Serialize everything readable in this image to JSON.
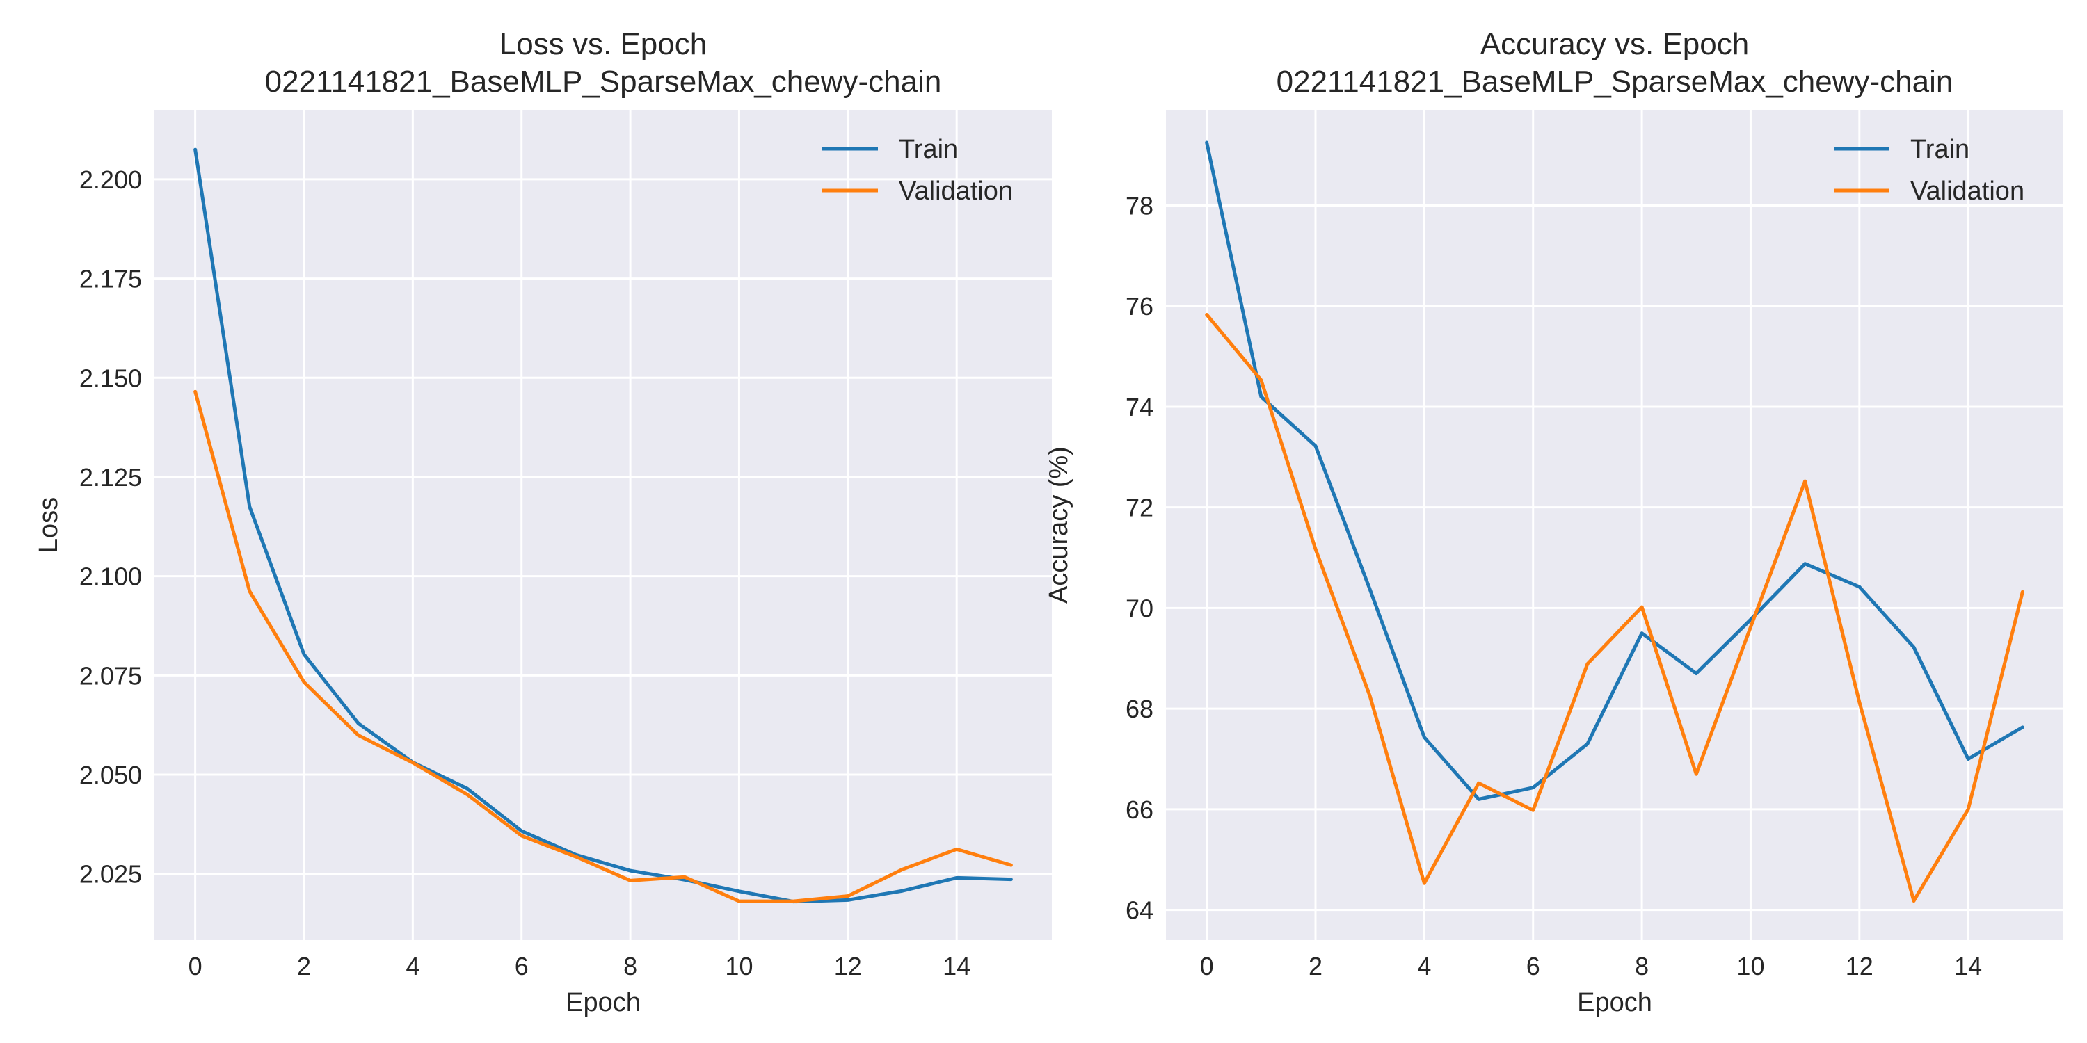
{
  "chart_data": [
    {
      "type": "line",
      "title": "Loss vs. Epoch",
      "subtitle": "0221141821_BaseMLP_SparseMax_chewy-chain",
      "xlabel": "Epoch",
      "ylabel": "Loss",
      "xlim": [
        -0.75,
        15.75
      ],
      "ylim": [
        2.0083,
        2.2175
      ],
      "xticks": [
        0,
        2,
        4,
        6,
        8,
        10,
        12,
        14
      ],
      "yticks": [
        2.025,
        2.05,
        2.075,
        2.1,
        2.125,
        2.15,
        2.175,
        2.2
      ],
      "xtick_labels": [
        "0",
        "2",
        "4",
        "6",
        "8",
        "10",
        "12",
        "14"
      ],
      "ytick_labels": [
        "2.025",
        "2.050",
        "2.075",
        "2.100",
        "2.125",
        "2.150",
        "2.175",
        "2.200"
      ],
      "grid": true,
      "legend": "top-right",
      "x": [
        0,
        1,
        2,
        3,
        4,
        5,
        6,
        7,
        8,
        9,
        10,
        11,
        12,
        13,
        14,
        15
      ],
      "series": [
        {
          "name": "Train",
          "color": "#1f77b4",
          "values": [
            2.2075,
            2.1175,
            2.0803,
            2.0629,
            2.0531,
            2.0465,
            2.0358,
            2.0298,
            2.0258,
            2.0235,
            2.0206,
            2.018,
            2.0184,
            2.0207,
            2.024,
            2.0236
          ]
        },
        {
          "name": "Validation",
          "color": "#ff7f0e",
          "values": [
            2.1465,
            2.0962,
            2.0733,
            2.0599,
            2.053,
            2.045,
            2.0346,
            2.0293,
            2.0233,
            2.0242,
            2.0181,
            2.0181,
            2.0194,
            2.0261,
            2.0312,
            2.0272
          ]
        }
      ]
    },
    {
      "type": "line",
      "title": "Accuracy vs. Epoch",
      "subtitle": "0221141821_BaseMLP_SparseMax_chewy-chain",
      "xlabel": "Epoch",
      "ylabel": "Accuracy (%)",
      "xlim": [
        -0.75,
        15.75
      ],
      "ylim": [
        63.4,
        79.9
      ],
      "xticks": [
        0,
        2,
        4,
        6,
        8,
        10,
        12,
        14
      ],
      "yticks": [
        64,
        66,
        68,
        70,
        72,
        74,
        76,
        78
      ],
      "xtick_labels": [
        "0",
        "2",
        "4",
        "6",
        "8",
        "10",
        "12",
        "14"
      ],
      "ytick_labels": [
        "64",
        "66",
        "68",
        "70",
        "72",
        "74",
        "76",
        "78"
      ],
      "grid": true,
      "legend": "top-right",
      "x": [
        0,
        1,
        2,
        3,
        4,
        5,
        6,
        7,
        8,
        9,
        10,
        11,
        12,
        13,
        14,
        15
      ],
      "series": [
        {
          "name": "Train",
          "color": "#1f77b4",
          "values": [
            79.25,
            74.2,
            73.22,
            70.37,
            67.43,
            66.2,
            66.43,
            67.3,
            69.5,
            68.7,
            69.77,
            70.88,
            70.42,
            69.22,
            67.0,
            67.63
          ]
        },
        {
          "name": "Validation",
          "color": "#ff7f0e",
          "values": [
            75.83,
            74.53,
            71.17,
            68.25,
            64.53,
            66.52,
            65.98,
            68.89,
            70.02,
            66.7,
            69.62,
            72.52,
            68.13,
            64.18,
            66.0,
            70.32
          ]
        }
      ]
    }
  ],
  "style": {
    "axes_background": "#eaeaf2",
    "grid_color": "#ffffff",
    "text_color": "#262626"
  }
}
